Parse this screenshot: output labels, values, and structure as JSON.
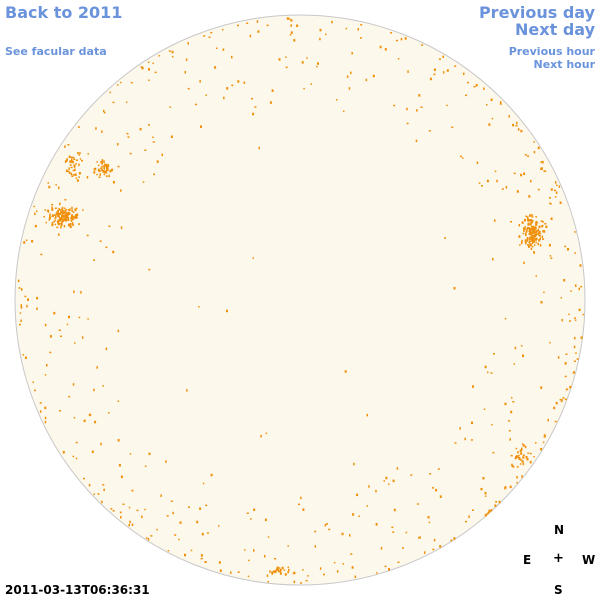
{
  "nav": {
    "back": "Back to 2011",
    "facular": "See facular data",
    "previous_day": "Previous day",
    "next_day": "Next day",
    "previous_hour": "Previous hour",
    "next_hour": "Next hour"
  },
  "compass": {
    "north": "N",
    "east": "E",
    "center": "+",
    "west": "W",
    "south": "S"
  },
  "timestamp": "2011-03-13T06:36:31",
  "colors": {
    "link": "#6a93dc",
    "disk_fill": "#fdf8ec",
    "disk_outline": "#c8c8c8",
    "facula": "#f0900a"
  }
}
